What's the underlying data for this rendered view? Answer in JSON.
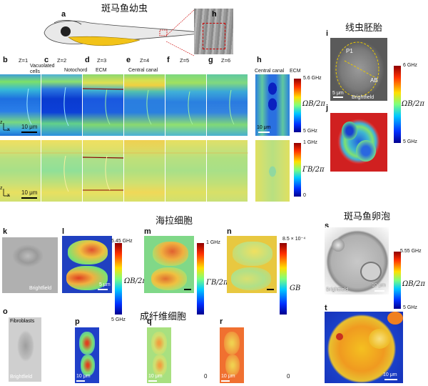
{
  "titles": {
    "zebrafish_larva": "斑马鱼幼虫",
    "nematode_embryo": "线虫胚胎",
    "hela": "海拉细胞",
    "zebrafish_egg": "斑马鱼卵泡",
    "fibroblast": "成纤维细胞"
  },
  "panels": {
    "a": "a",
    "h_top": "h",
    "b": "b",
    "c": "c",
    "d": "d",
    "e": "e",
    "f": "f",
    "g": "g",
    "h": "h",
    "i": "i",
    "j": "j",
    "k": "k",
    "l": "l",
    "m": "m",
    "n": "n",
    "o": "o",
    "p": "p",
    "q": "q",
    "r": "r",
    "s": "s",
    "t": "t"
  },
  "z_labels": [
    "Z=1",
    "Z=2",
    "Z=3",
    "Z=4",
    "Z=5",
    "Z=6"
  ],
  "annotations": {
    "vacuolated": "Vacuolated cells",
    "notochord": "Notochord",
    "ecm": "ECM",
    "central_canal": "Central canal",
    "h_central_canal": "Central canal",
    "h_ecm": "ECM",
    "p1": "P1",
    "ab": "AB",
    "fibroblasts": "Fibroblasts"
  },
  "brightfield": "Brightfield",
  "scalebars": {
    "ten": "10 μm",
    "five": "5 μm"
  },
  "axes": {
    "z": "z",
    "x": "x"
  },
  "colorbars": {
    "h_top": {
      "max": "5.6 GHz",
      "min": "5 GHz",
      "label": "ΩB/2π"
    },
    "h_bottom": {
      "max": "1 GHz",
      "min": "0",
      "label": "ΓB/2π"
    },
    "i": {
      "max": "6 GHz",
      "min": "5 GHz",
      "label": "ΩB/2π"
    },
    "l": {
      "max": "5.45 GHz",
      "min": "5 GHz",
      "label": "ΩB/2π"
    },
    "m": {
      "max": "1 GHz",
      "min": "0",
      "label": "ΓB/2π"
    },
    "n": {
      "max": "8.5 × 10⁻⁴",
      "min": "0",
      "label": "GB"
    },
    "s": {
      "max": "5.55 GHz",
      "min": "5 GHz",
      "label": "ΩB/2π"
    }
  },
  "colors": {
    "jet_low": "#00008f",
    "jet_mid": "#7dff7d",
    "jet_high": "#8f0000",
    "larva_yellow": "#f2c318"
  }
}
